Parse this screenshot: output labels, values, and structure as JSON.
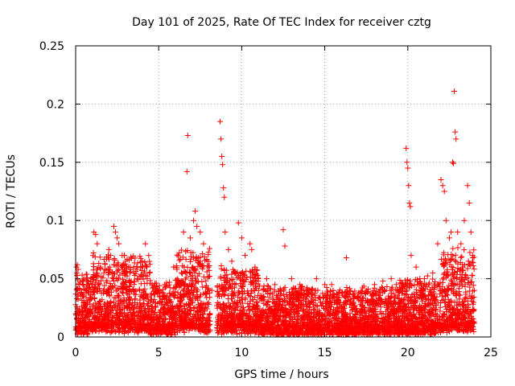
{
  "chart_data": {
    "type": "scatter",
    "title": "Day 101 of 2025, Rate Of TEC Index for receiver cztg",
    "xlabel": "GPS time / hours",
    "ylabel": "ROTI / TECUs",
    "xlim": [
      0,
      25
    ],
    "ylim": [
      0,
      0.25
    ],
    "x_ticks": [
      0,
      5,
      10,
      15,
      20,
      25
    ],
    "x_tick_labels": [
      "0",
      "5",
      "10",
      "15",
      "20",
      "25"
    ],
    "y_ticks": [
      0,
      0.05,
      0.1,
      0.15,
      0.2,
      0.25
    ],
    "y_tick_labels": [
      "0",
      "0.05",
      "0.1",
      "0.15",
      "0.2",
      "0.25"
    ],
    "grid": true,
    "marker": "+",
    "marker_color": "#ff0000",
    "series": [
      {
        "name": "ROTI",
        "points": [
          [
            0.05,
            0.06
          ],
          [
            0.1,
            0.062
          ],
          [
            0.15,
            0.058
          ],
          [
            0.2,
            0.045
          ],
          [
            0.3,
            0.035
          ],
          [
            0.5,
            0.03
          ],
          [
            0.7,
            0.028
          ],
          [
            1.0,
            0.045
          ],
          [
            1.1,
            0.09
          ],
          [
            1.2,
            0.088
          ],
          [
            1.3,
            0.08
          ],
          [
            1.5,
            0.06
          ],
          [
            1.7,
            0.055
          ],
          [
            2.0,
            0.075
          ],
          [
            2.1,
            0.07
          ],
          [
            2.3,
            0.095
          ],
          [
            2.4,
            0.09
          ],
          [
            2.5,
            0.085
          ],
          [
            2.6,
            0.08
          ],
          [
            2.8,
            0.07
          ],
          [
            3.0,
            0.065
          ],
          [
            3.2,
            0.06
          ],
          [
            3.5,
            0.055
          ],
          [
            3.7,
            0.05
          ],
          [
            4.0,
            0.065
          ],
          [
            4.2,
            0.08
          ],
          [
            4.4,
            0.07
          ],
          [
            4.6,
            0.045
          ],
          [
            5.0,
            0.04
          ],
          [
            5.5,
            0.035
          ],
          [
            5.9,
            0.06
          ],
          [
            6.1,
            0.058
          ],
          [
            6.3,
            0.045
          ],
          [
            6.5,
            0.09
          ],
          [
            6.7,
            0.142
          ],
          [
            6.75,
            0.173
          ],
          [
            6.9,
            0.085
          ],
          [
            7.1,
            0.1
          ],
          [
            7.2,
            0.108
          ],
          [
            7.3,
            0.095
          ],
          [
            7.5,
            0.09
          ],
          [
            7.7,
            0.08
          ],
          [
            8.0,
            0.06
          ],
          [
            8.2,
            0.04
          ],
          [
            8.7,
            0.185
          ],
          [
            8.75,
            0.17
          ],
          [
            8.8,
            0.155
          ],
          [
            8.85,
            0.148
          ],
          [
            8.9,
            0.128
          ],
          [
            8.95,
            0.12
          ],
          [
            9.0,
            0.09
          ],
          [
            9.2,
            0.075
          ],
          [
            9.4,
            0.065
          ],
          [
            9.8,
            0.098
          ],
          [
            10.0,
            0.085
          ],
          [
            10.2,
            0.07
          ],
          [
            10.5,
            0.08
          ],
          [
            10.6,
            0.075
          ],
          [
            10.8,
            0.06
          ],
          [
            11.0,
            0.05
          ],
          [
            11.5,
            0.05
          ],
          [
            12.0,
            0.045
          ],
          [
            12.5,
            0.092
          ],
          [
            12.6,
            0.078
          ],
          [
            13.0,
            0.05
          ],
          [
            13.5,
            0.045
          ],
          [
            14.0,
            0.04
          ],
          [
            14.5,
            0.05
          ],
          [
            15.0,
            0.045
          ],
          [
            15.5,
            0.04
          ],
          [
            16.0,
            0.038
          ],
          [
            16.3,
            0.068
          ],
          [
            16.5,
            0.04
          ],
          [
            17.0,
            0.035
          ],
          [
            17.5,
            0.04
          ],
          [
            18.0,
            0.045
          ],
          [
            18.5,
            0.048
          ],
          [
            19.0,
            0.05
          ],
          [
            19.3,
            0.045
          ],
          [
            19.7,
            0.04
          ],
          [
            19.9,
            0.162
          ],
          [
            19.95,
            0.15
          ],
          [
            20.0,
            0.145
          ],
          [
            20.05,
            0.13
          ],
          [
            20.1,
            0.115
          ],
          [
            20.15,
            0.112
          ],
          [
            20.2,
            0.07
          ],
          [
            20.5,
            0.06
          ],
          [
            21.0,
            0.05
          ],
          [
            21.5,
            0.055
          ],
          [
            21.8,
            0.08
          ],
          [
            22.0,
            0.135
          ],
          [
            22.1,
            0.13
          ],
          [
            22.2,
            0.125
          ],
          [
            22.3,
            0.1
          ],
          [
            22.5,
            0.085
          ],
          [
            22.6,
            0.09
          ],
          [
            22.7,
            0.15
          ],
          [
            22.75,
            0.149
          ],
          [
            22.8,
            0.211
          ],
          [
            22.85,
            0.176
          ],
          [
            22.9,
            0.17
          ],
          [
            23.0,
            0.09
          ],
          [
            23.2,
            0.08
          ],
          [
            23.4,
            0.1
          ],
          [
            23.6,
            0.13
          ],
          [
            23.7,
            0.115
          ],
          [
            23.8,
            0.09
          ],
          [
            23.9,
            0.07
          ],
          [
            24.0,
            0.04
          ]
        ]
      }
    ]
  }
}
